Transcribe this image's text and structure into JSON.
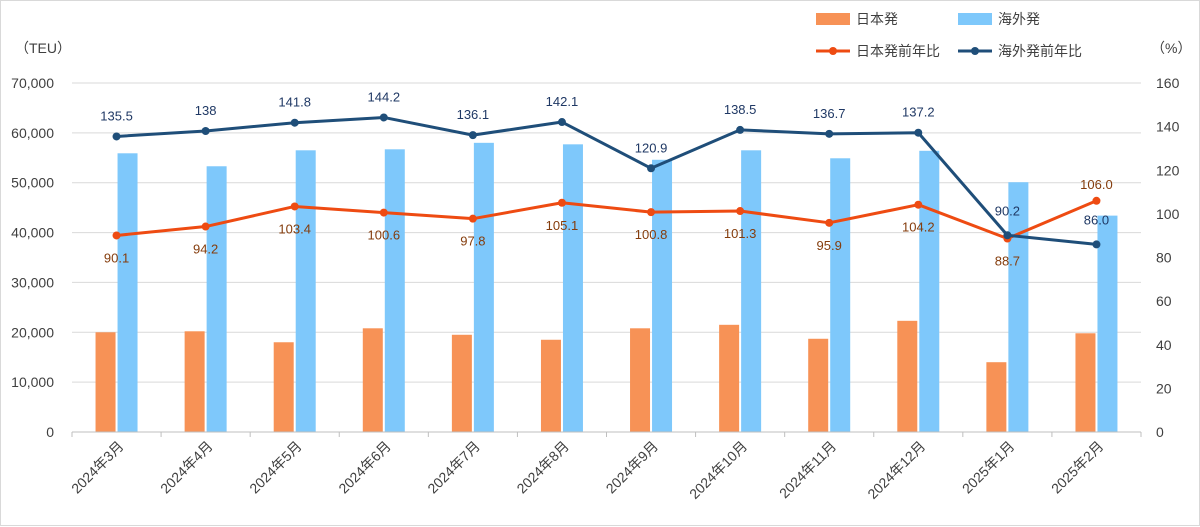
{
  "chart_data": {
    "type": "bar",
    "categories": [
      "2024年3月",
      "2024年4月",
      "2024年5月",
      "2024年6月",
      "2024年7月",
      "2024年8月",
      "2024年9月",
      "2024年10月",
      "2024年11月",
      "2024年12月",
      "2025年1月",
      "2025年2月"
    ],
    "left_axis": {
      "unit_label": "（TEU）",
      "ylim": [
        0,
        70000
      ],
      "ticks": [
        "0",
        "10,000",
        "20,000",
        "30,000",
        "40,000",
        "50,000",
        "60,000",
        "70,000"
      ],
      "tick_values": [
        0,
        10000,
        20000,
        30000,
        40000,
        50000,
        60000,
        70000
      ]
    },
    "right_axis": {
      "unit_label": "（%）",
      "ylim": [
        0,
        160
      ],
      "ticks": [
        "0",
        "20",
        "40",
        "60",
        "80",
        "100",
        "120",
        "140",
        "160"
      ],
      "tick_values": [
        0,
        20,
        40,
        60,
        80,
        100,
        120,
        140,
        160
      ]
    },
    "grid": true,
    "legend_position": "top-right",
    "bar_series": [
      {
        "name": "日本発",
        "color": "#f79256",
        "values": [
          20000,
          20200,
          18000,
          20800,
          19500,
          18500,
          20800,
          21500,
          18700,
          22300,
          14000,
          19800
        ]
      },
      {
        "name": "海外発",
        "color": "#7ec8fb",
        "values": [
          55900,
          53300,
          56500,
          56700,
          58000,
          57700,
          54600,
          56500,
          54900,
          56400,
          50100,
          43400
        ]
      }
    ],
    "line_series": [
      {
        "name": "日本発前年比",
        "color": "#ee4b12",
        "label_color": "#843c0c",
        "values": [
          90.1,
          94.2,
          103.4,
          100.6,
          97.8,
          105.1,
          100.8,
          101.3,
          95.9,
          104.2,
          88.7,
          106.0
        ],
        "labels": [
          "90.1",
          "94.2",
          "103.4",
          "100.6",
          "97.8",
          "105.1",
          "100.8",
          "101.3",
          "95.9",
          "104.2",
          "88.7",
          "106.0"
        ]
      },
      {
        "name": "海外発前年比",
        "color": "#1f4e79",
        "label_color": "#1f3864",
        "values": [
          135.5,
          138,
          141.8,
          144.2,
          136.1,
          142.1,
          120.9,
          138.5,
          136.7,
          137.2,
          90.2,
          86.0
        ],
        "labels": [
          "135.5",
          "138",
          "141.8",
          "144.2",
          "136.1",
          "142.1",
          "120.9",
          "138.5",
          "136.7",
          "137.2",
          "90.2",
          "86.0"
        ]
      }
    ]
  }
}
